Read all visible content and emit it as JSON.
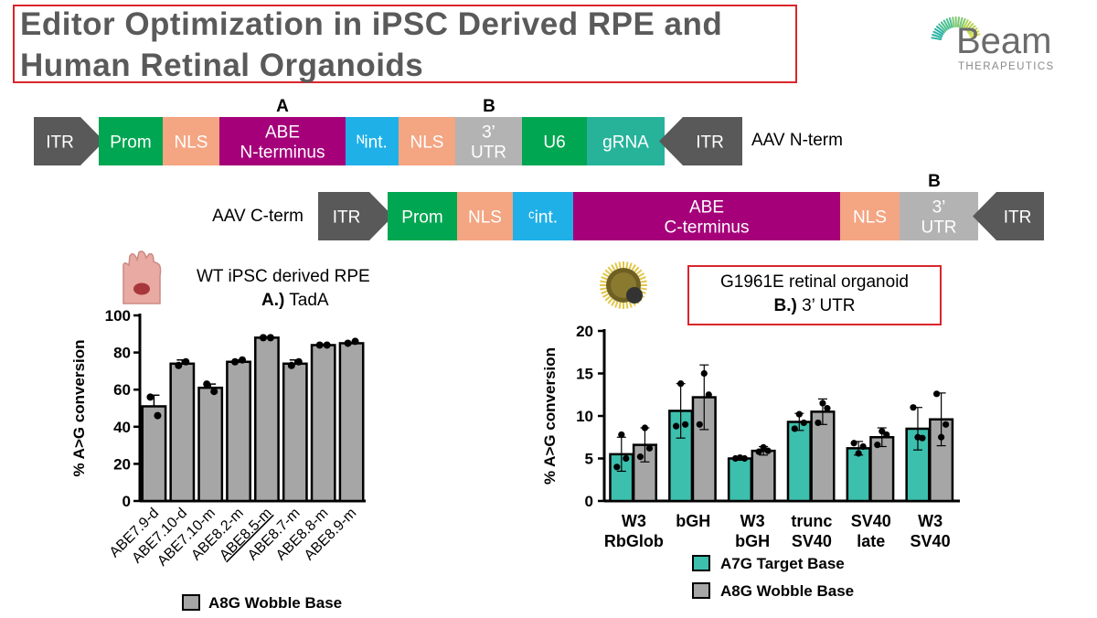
{
  "title": {
    "line1": "Editor Optimization in iPSC Derived RPE and",
    "line2": "Human Retinal Organoids"
  },
  "logo": {
    "brand": "Beam",
    "subtitle": "THERAPEUTICS"
  },
  "constructs": {
    "n_term": {
      "label": "AAV N-term",
      "segments": [
        {
          "text": [
            "ITR"
          ],
          "color": "#595959"
        },
        {
          "text": [
            "Prom"
          ],
          "color": "#00a651"
        },
        {
          "text": [
            "NLS"
          ],
          "color": "#f4a582"
        },
        {
          "text": [
            "ABE",
            "N-terminus"
          ],
          "color": "#a5007a"
        },
        {
          "text": [
            "ᴺint."
          ],
          "color": "#1fb0e8"
        },
        {
          "text": [
            "NLS"
          ],
          "color": "#f4a582"
        },
        {
          "text": [
            "3’",
            "UTR"
          ],
          "color": "#b3b3b3"
        },
        {
          "text": [
            "U6"
          ],
          "color": "#00a651"
        },
        {
          "text": [
            "gRNA"
          ],
          "color": "#26b39a"
        },
        {
          "text": [
            "ITR"
          ],
          "color": "#595959"
        }
      ],
      "markers": [
        "A",
        "B"
      ]
    },
    "c_term": {
      "label": "AAV C-term",
      "segments": [
        {
          "text": [
            "ITR"
          ],
          "color": "#595959"
        },
        {
          "text": [
            "Prom"
          ],
          "color": "#00a651"
        },
        {
          "text": [
            "NLS"
          ],
          "color": "#f4a582"
        },
        {
          "text": [
            "ᶜint."
          ],
          "color": "#1fb0e8"
        },
        {
          "text": [
            "ABE",
            "C-terminus"
          ],
          "color": "#a5007a"
        },
        {
          "text": [
            "NLS"
          ],
          "color": "#f4a582"
        },
        {
          "text": [
            "3’",
            "UTR"
          ],
          "color": "#b3b3b3"
        },
        {
          "text": [
            "ITR"
          ],
          "color": "#595959"
        }
      ],
      "markers": [
        "B"
      ]
    }
  },
  "panel_a": {
    "heading": "WT iPSC derived RPE",
    "subheading_bold": "A.)",
    "subheading": " TadA"
  },
  "panel_b": {
    "heading": "G1961E retinal organoid",
    "subheading_bold": "B.)",
    "subheading": " 3’ UTR"
  },
  "chart_data": [
    {
      "type": "bar",
      "title": "WT iPSC derived RPE — A.) TadA",
      "ylabel": "% A>G conversion",
      "xlabel": "",
      "ylim": [
        0,
        100
      ],
      "yticks": [
        0,
        20,
        40,
        60,
        80,
        100
      ],
      "categories": [
        "ABE7.9-d",
        "ABE7.10-d",
        "ABE7.10-m",
        "ABE8.2-m",
        "ABE8.5-m",
        "ABE8.7-m",
        "ABE8.8-m",
        "ABE8.9-m"
      ],
      "underlined_category": "ABE8.5-m",
      "series": [
        {
          "name": "A8G Wobble Base",
          "color": "#a6a6a6",
          "values": [
            51,
            74,
            61,
            75,
            88,
            74,
            84,
            85
          ],
          "errors": [
            6,
            2,
            2,
            1,
            0.5,
            2,
            0.5,
            0.5
          ],
          "points": [
            [
              56,
              46
            ],
            [
              73,
              75
            ],
            [
              63,
              59
            ],
            [
              75,
              76
            ],
            [
              88,
              88
            ],
            [
              73,
              75
            ],
            [
              84,
              84
            ],
            [
              85,
              86
            ]
          ]
        }
      ],
      "legend": [
        "A8G Wobble Base"
      ],
      "legend_position": "bottom"
    },
    {
      "type": "bar",
      "title": "G1961E retinal organoid — B.) 3’ UTR",
      "ylabel": "% A>G conversion",
      "xlabel": "",
      "ylim": [
        0,
        20
      ],
      "yticks": [
        0,
        5,
        10,
        15,
        20
      ],
      "categories": [
        [
          "W3",
          "RbGlob"
        ],
        [
          "bGH"
        ],
        [
          "W3",
          "bGH"
        ],
        [
          "trunc",
          "SV40"
        ],
        [
          "SV40",
          "late"
        ],
        [
          "W3",
          "SV40"
        ]
      ],
      "series": [
        {
          "name": "A7G Target Base",
          "color": "#3dbfad",
          "values": [
            5.5,
            10.6,
            5.0,
            9.3,
            6.2,
            8.5
          ],
          "errors": [
            2.0,
            3.2,
            0.2,
            1.0,
            0.8,
            2.5
          ],
          "points": [
            [
              4.0,
              7.8,
              5.0
            ],
            [
              8.8,
              13.8,
              9.0
            ],
            [
              5.0,
              5.1,
              5.0
            ],
            [
              8.5,
              10.2,
              9.2
            ],
            [
              6.8,
              5.6,
              6.4
            ],
            [
              11.0,
              7.5,
              7.4
            ]
          ]
        },
        {
          "name": "A8G Wobble Base",
          "color": "#a6a6a6",
          "values": [
            6.6,
            12.2,
            5.9,
            10.5,
            7.5,
            9.6
          ],
          "errors": [
            2.0,
            3.8,
            0.5,
            1.5,
            1.1,
            3.1
          ],
          "points": [
            [
              5.2,
              8.6,
              6.2
            ],
            [
              9.0,
              15.0,
              12.5
            ],
            [
              5.8,
              6.3,
              5.9
            ],
            [
              9.2,
              11.5,
              10.9
            ],
            [
              6.6,
              8.2,
              7.8
            ],
            [
              12.6,
              7.5,
              9.0
            ]
          ]
        }
      ],
      "legend": [
        "A7G Target Base",
        "A8G Wobble Base"
      ],
      "legend_position": "bottom"
    }
  ]
}
